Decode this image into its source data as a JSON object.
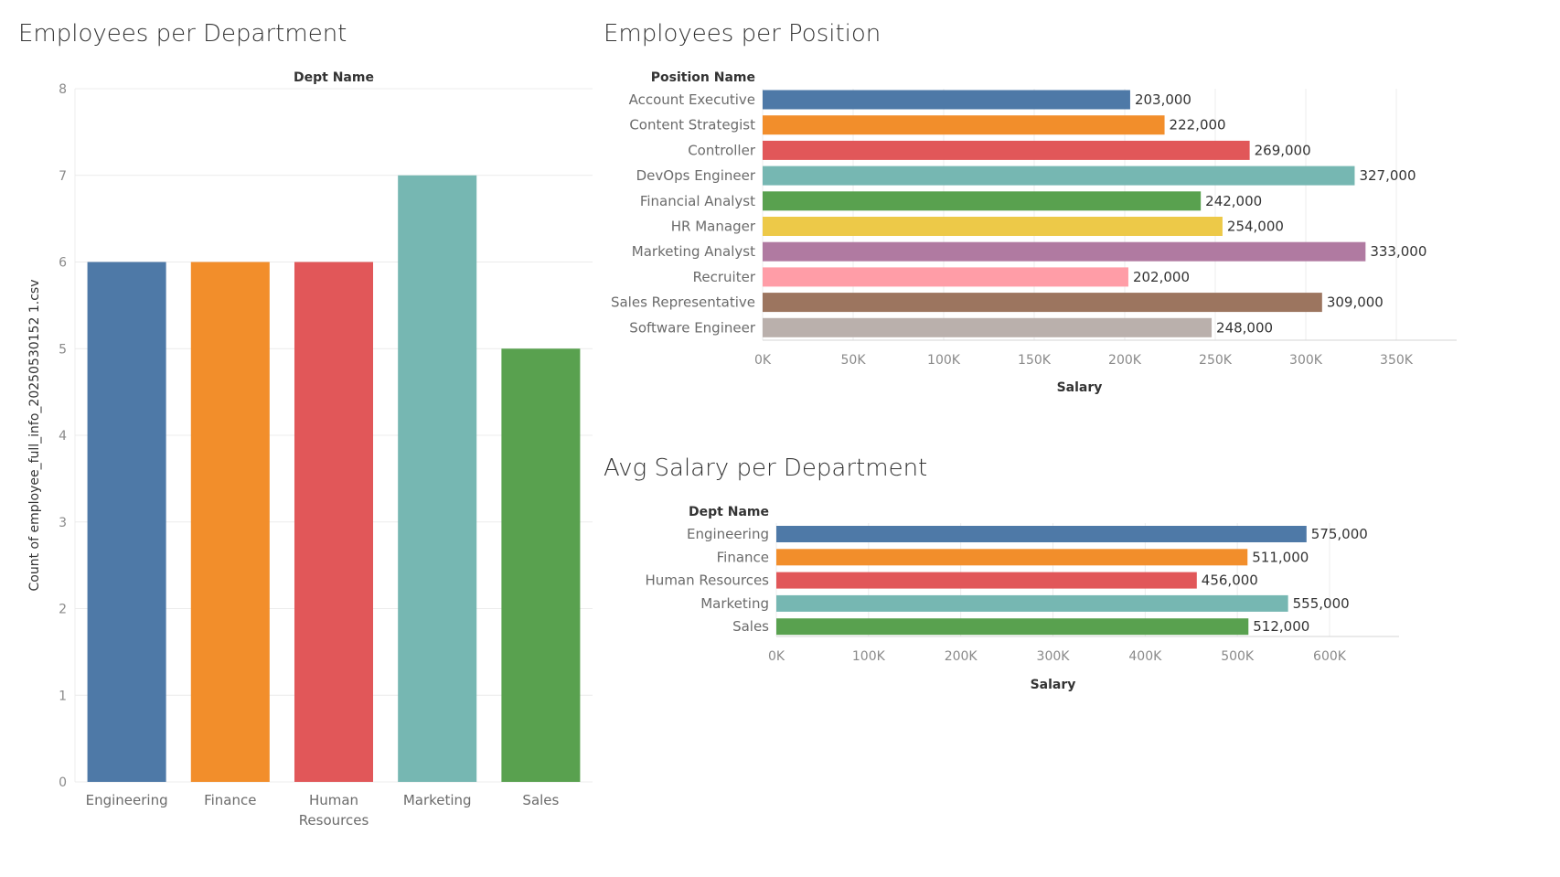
{
  "chart_data": [
    {
      "type": "bar",
      "title": "Employees per Department",
      "header": "Dept Name",
      "ylabel": "Count of employee_full_info_20250530152 1.csv",
      "categories": [
        "Engineering",
        "Finance",
        "Human Resources",
        "Marketing",
        "Sales"
      ],
      "category_lines": [
        [
          "Engineering"
        ],
        [
          "Finance"
        ],
        [
          "Human",
          "Resources"
        ],
        [
          "Marketing"
        ],
        [
          "Sales"
        ]
      ],
      "values": [
        6,
        6,
        6,
        7,
        5
      ],
      "colors": [
        "#4e79a7",
        "#f28e2b",
        "#e15759",
        "#76b7b2",
        "#59a14f"
      ],
      "ylim": [
        0,
        8
      ],
      "yticks": [
        "0",
        "1",
        "2",
        "3",
        "4",
        "5",
        "6",
        "7",
        "8"
      ],
      "grid": true
    },
    {
      "type": "bar",
      "orientation": "horizontal",
      "title": "Employees per Position",
      "header": "Position Name",
      "xlabel": "Salary",
      "categories": [
        "Account Executive",
        "Content Strategist",
        "Controller",
        "DevOps Engineer",
        "Financial Analyst",
        "HR Manager",
        "Marketing Analyst",
        "Recruiter",
        "Sales Representative",
        "Software Engineer"
      ],
      "values": [
        203000,
        222000,
        269000,
        327000,
        242000,
        254000,
        333000,
        202000,
        309000,
        248000
      ],
      "value_labels": [
        "203,000",
        "222,000",
        "269,000",
        "327,000",
        "242,000",
        "254,000",
        "333,000",
        "202,000",
        "309,000",
        "248,000"
      ],
      "colors": [
        "#4e79a7",
        "#f28e2b",
        "#e15759",
        "#76b7b2",
        "#59a14f",
        "#edc948",
        "#b07aa1",
        "#ff9da7",
        "#9c755f",
        "#bab0ac"
      ],
      "xlim": [
        0,
        350000
      ],
      "xticks": [
        "0K",
        "50K",
        "100K",
        "150K",
        "200K",
        "250K",
        "300K",
        "350K"
      ],
      "grid": true
    },
    {
      "type": "bar",
      "orientation": "horizontal",
      "title": "Avg Salary per Department",
      "header": "Dept Name",
      "xlabel": "Salary",
      "categories": [
        "Engineering",
        "Finance",
        "Human Resources",
        "Marketing",
        "Sales"
      ],
      "values": [
        575000,
        511000,
        456000,
        555000,
        512000
      ],
      "value_labels": [
        "575,000",
        "511,000",
        "456,000",
        "555,000",
        "512,000"
      ],
      "colors": [
        "#4e79a7",
        "#f28e2b",
        "#e15759",
        "#76b7b2",
        "#59a14f"
      ],
      "xlim": [
        0,
        600000
      ],
      "xticks": [
        "0K",
        "100K",
        "200K",
        "300K",
        "400K",
        "500K",
        "600K"
      ],
      "grid": true
    }
  ]
}
